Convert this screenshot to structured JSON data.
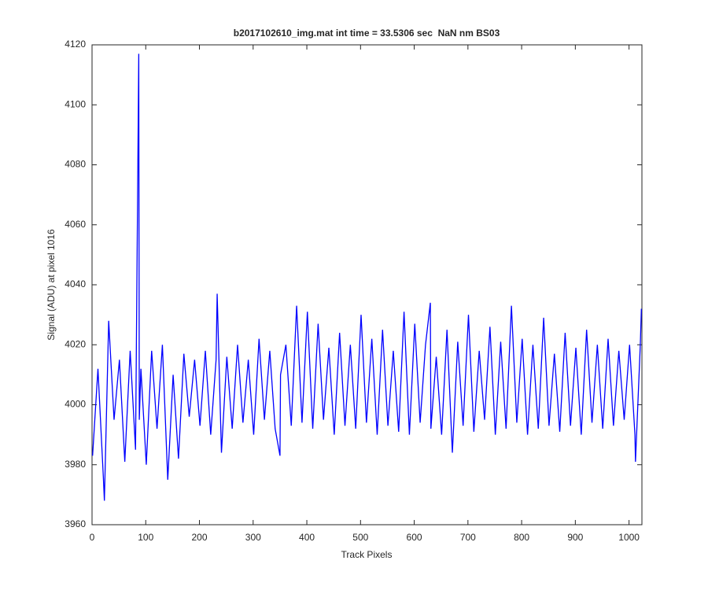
{
  "chart_data": {
    "type": "line",
    "title": "b2017102610_img.mat int time = 33.5306 sec  NaN nm BS03",
    "x_label": "Track Pixels",
    "y_label": "Signal (ADU) at pixel 1016",
    "xlim": [
      0,
      1024
    ],
    "ylim": [
      3960,
      4120
    ],
    "xticks": [
      0,
      100,
      200,
      300,
      400,
      500,
      600,
      700,
      800,
      900,
      1000
    ],
    "yticks": [
      3960,
      3980,
      4000,
      4020,
      4040,
      4060,
      4080,
      4100,
      4120
    ],
    "grid": false,
    "series": [
      {
        "color": "#0000ff",
        "x": [
          1,
          11,
          21,
          23,
          31,
          41,
          51,
          61,
          71,
          81,
          87,
          88,
          91,
          101,
          111,
          121,
          131,
          141,
          151,
          161,
          171,
          181,
          191,
          201,
          211,
          221,
          231,
          233,
          241,
          251,
          261,
          271,
          281,
          291,
          301,
          311,
          321,
          331,
          341,
          350,
          351,
          361,
          371,
          381,
          391,
          401,
          411,
          421,
          431,
          441,
          451,
          461,
          471,
          481,
          491,
          501,
          511,
          521,
          531,
          541,
          551,
          561,
          571,
          581,
          591,
          601,
          611,
          621,
          630,
          631,
          641,
          651,
          661,
          671,
          681,
          691,
          701,
          711,
          721,
          731,
          741,
          751,
          761,
          771,
          781,
          791,
          801,
          811,
          821,
          831,
          841,
          851,
          861,
          871,
          881,
          891,
          901,
          911,
          921,
          931,
          941,
          951,
          961,
          971,
          981,
          991,
          1001,
          1011,
          1012,
          1021,
          1023
        ],
        "values": [
          3983,
          4012,
          3976,
          3968,
          4028,
          3995,
          4015,
          3981,
          4018,
          3985,
          4117,
          3995,
          4012,
          3980,
          4018,
          3992,
          4020,
          3975,
          4010,
          3982,
          4017,
          3996,
          4015,
          3993,
          4018,
          3990,
          4015,
          4037,
          3984,
          4016,
          3992,
          4020,
          3994,
          4015,
          3990,
          4022,
          3995,
          4018,
          3992,
          3983,
          4010,
          4020,
          3993,
          4033,
          3994,
          4031,
          3992,
          4027,
          3995,
          4019,
          3990,
          4024,
          3993,
          4020,
          3992,
          4030,
          3994,
          4022,
          3990,
          4025,
          3993,
          4018,
          3991,
          4031,
          3990,
          4027,
          3994,
          4020,
          4034,
          3992,
          4016,
          3990,
          4025,
          3984,
          4021,
          3993,
          4030,
          3991,
          4018,
          3995,
          4026,
          3990,
          4021,
          3992,
          4033,
          3994,
          4022,
          3990,
          4020,
          3992,
          4029,
          3993,
          4017,
          3991,
          4024,
          3993,
          4019,
          3990,
          4025,
          3994,
          4020,
          3992,
          4022,
          3993,
          4018,
          3995,
          4020,
          3990,
          3981,
          4020,
          4032
        ]
      }
    ]
  }
}
